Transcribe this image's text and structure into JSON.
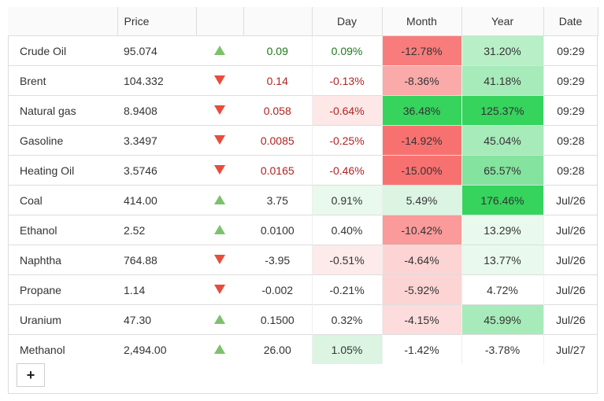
{
  "headers": {
    "name": "",
    "price": "Price",
    "arrow": "",
    "change": "",
    "day": "Day",
    "month": "Month",
    "year": "Year",
    "date": "Date"
  },
  "rows": [
    {
      "name": "Crude Oil",
      "price": "95.074",
      "dir": "up",
      "change": "0.09",
      "day": "0.09%",
      "month": "-12.78%",
      "year": "31.20%",
      "date": "09:29",
      "change_color": "pos",
      "day_color": "pos",
      "day_bg": "#ffffff",
      "month_bg": "#f87c7c",
      "year_bg": "#b9efc7"
    },
    {
      "name": "Brent",
      "price": "104.332",
      "dir": "down",
      "change": "0.14",
      "day": "-0.13%",
      "month": "-8.36%",
      "year": "41.18%",
      "date": "09:29",
      "change_color": "neg",
      "day_color": "neg",
      "day_bg": "#ffffff",
      "month_bg": "#fbaaaa",
      "year_bg": "#a7ebba"
    },
    {
      "name": "Natural gas",
      "price": "8.9408",
      "dir": "down",
      "change": "0.058",
      "day": "-0.64%",
      "month": "36.48%",
      "year": "125.37%",
      "date": "09:29",
      "change_color": "neg",
      "day_color": "neg",
      "day_bg": "#fde7e7",
      "month_bg": "#36d35d",
      "year_bg": "#36d35d"
    },
    {
      "name": "Gasoline",
      "price": "3.3497",
      "dir": "down",
      "change": "0.0085",
      "day": "-0.25%",
      "month": "-14.92%",
      "year": "45.04%",
      "date": "09:28",
      "change_color": "neg",
      "day_color": "neg",
      "day_bg": "#ffffff",
      "month_bg": "#f87171",
      "year_bg": "#a7ebba"
    },
    {
      "name": "Heating Oil",
      "price": "3.5746",
      "dir": "down",
      "change": "0.0165",
      "day": "-0.46%",
      "month": "-15.00%",
      "year": "65.57%",
      "date": "09:28",
      "change_color": "neg",
      "day_color": "neg",
      "day_bg": "#ffffff",
      "month_bg": "#f87171",
      "year_bg": "#84e39e"
    },
    {
      "name": "Coal",
      "price": "414.00",
      "dir": "up",
      "change": "3.75",
      "day": "0.91%",
      "month": "5.49%",
      "year": "176.46%",
      "date": "Jul/26",
      "change_color": "plain",
      "day_color": "plain",
      "day_bg": "#e9f9ed",
      "month_bg": "#dbf5e2",
      "year_bg": "#36d35d"
    },
    {
      "name": "Ethanol",
      "price": "2.52",
      "dir": "up",
      "change": "0.0100",
      "day": "0.40%",
      "month": "-10.42%",
      "year": "13.29%",
      "date": "Jul/26",
      "change_color": "plain",
      "day_color": "plain",
      "day_bg": "#ffffff",
      "month_bg": "#fa9a9a",
      "year_bg": "#e9f9ed"
    },
    {
      "name": "Naphtha",
      "price": "764.88",
      "dir": "down",
      "change": "-3.95",
      "day": "-0.51%",
      "month": "-4.64%",
      "year": "13.77%",
      "date": "Jul/26",
      "change_color": "plain",
      "day_color": "plain",
      "day_bg": "#fdeaea",
      "month_bg": "#fcd4d4",
      "year_bg": "#e9f9ed"
    },
    {
      "name": "Propane",
      "price": "1.14",
      "dir": "down",
      "change": "-0.002",
      "day": "-0.21%",
      "month": "-5.92%",
      "year": "4.72%",
      "date": "Jul/26",
      "change_color": "plain",
      "day_color": "plain",
      "day_bg": "#ffffff",
      "month_bg": "#fcd4d4",
      "year_bg": "#ffffff"
    },
    {
      "name": "Uranium",
      "price": "47.30",
      "dir": "up",
      "change": "0.1500",
      "day": "0.32%",
      "month": "-4.15%",
      "year": "45.99%",
      "date": "Jul/26",
      "change_color": "plain",
      "day_color": "plain",
      "day_bg": "#ffffff",
      "month_bg": "#fcdcdc",
      "year_bg": "#a7ebba"
    },
    {
      "name": "Methanol",
      "price": "2,494.00",
      "dir": "up",
      "change": "26.00",
      "day": "1.05%",
      "month": "-1.42%",
      "year": "-3.78%",
      "date": "Jul/27",
      "change_color": "plain",
      "day_color": "plain",
      "day_bg": "#dbf5e2",
      "month_bg": "#ffffff",
      "year_bg": "#ffffff"
    }
  ],
  "add_button": {
    "label": "+"
  }
}
